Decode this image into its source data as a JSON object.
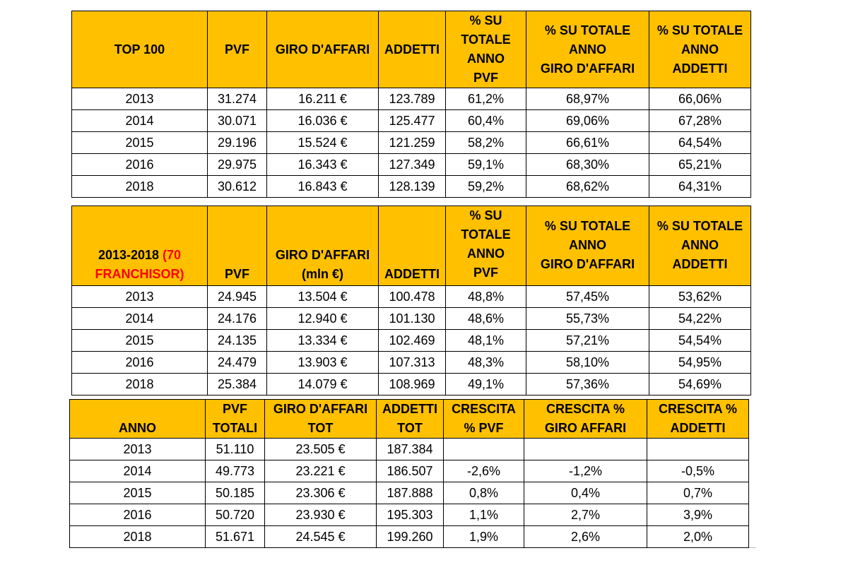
{
  "table_top100": {
    "headers": [
      "TOP 100",
      "PVF",
      "GIRO D'AFFARI",
      "ADDETTI",
      "% SU TOTALE ANNO PVF",
      "% SU TOTALE ANNO GIRO D'AFFARI",
      "% SU TOTALE ANNO ADDETTI"
    ],
    "header_lines": {
      "col4": [
        "% SU",
        "TOTALE",
        "ANNO",
        "PVF"
      ],
      "col5": [
        "% SU TOTALE",
        "ANNO",
        "GIRO D'AFFARI"
      ],
      "col6": [
        "% SU TOTALE",
        "ANNO",
        "ADDETTI"
      ]
    },
    "rows": [
      [
        "2013",
        "31.274",
        "16.211 €",
        "123.789",
        "61,2%",
        "68,97%",
        "66,06%"
      ],
      [
        "2014",
        "30.071",
        "16.036 €",
        "125.477",
        "60,4%",
        "69,06%",
        "67,28%"
      ],
      [
        "2015",
        "29.196",
        "15.524 €",
        "121.259",
        "58,2%",
        "66,61%",
        "64,54%"
      ],
      [
        "2016",
        "29.975",
        "16.343 €",
        "127.349",
        "59,1%",
        "68,30%",
        "65,21%"
      ],
      [
        "2018",
        "30.612",
        "16.843 €",
        "128.139",
        "59,2%",
        "68,62%",
        "64,31%"
      ]
    ]
  },
  "table_franchisor": {
    "header_title_main": "2013-2018",
    "header_title_highlight_1": "(70",
    "header_title_highlight_2": "FRANCHISOR)",
    "header_pvf": "PVF",
    "header_giro_lines": [
      "GIRO D'AFFARI",
      "(mln €)"
    ],
    "header_addetti": "ADDETTI",
    "header_lines": {
      "col4": [
        "% SU",
        "TOTALE",
        "ANNO",
        "PVF"
      ],
      "col5": [
        "% SU TOTALE",
        "ANNO",
        "GIRO D'AFFARI"
      ],
      "col6": [
        "% SU TOTALE",
        "ANNO",
        "ADDETTI"
      ]
    },
    "rows": [
      [
        "2013",
        "24.945",
        "13.504 €",
        "100.478",
        "48,8%",
        "57,45%",
        "53,62%"
      ],
      [
        "2014",
        "24.176",
        "12.940 €",
        "101.130",
        "48,6%",
        "55,73%",
        "54,22%"
      ],
      [
        "2015",
        "24.135",
        "13.334 €",
        "102.469",
        "48,1%",
        "57,21%",
        "54,54%"
      ],
      [
        "2016",
        "24.479",
        "13.903 €",
        "107.313",
        "48,3%",
        "58,10%",
        "54,95%"
      ],
      [
        "2018",
        "25.384",
        "14.079 €",
        "108.969",
        "49,1%",
        "57,36%",
        "54,69%"
      ]
    ]
  },
  "table_totals": {
    "header_lines": {
      "col0": [
        "ANNO"
      ],
      "col1": [
        "PVF",
        "TOTALI"
      ],
      "col2": [
        "GIRO D'AFFARI",
        "TOT"
      ],
      "col3": [
        "ADDETTI",
        "TOT"
      ],
      "col4": [
        "CRESCITA",
        "% PVF"
      ],
      "col5": [
        "CRESCITA %",
        "GIRO AFFARI"
      ],
      "col6": [
        "CRESCITA %",
        "ADDETTI"
      ]
    },
    "rows": [
      [
        "2013",
        "51.110",
        "23.505 €",
        "187.384",
        "",
        "",
        ""
      ],
      [
        "2014",
        "49.773",
        "23.221 €",
        "186.507",
        "-2,6%",
        "-1,2%",
        "-0,5%"
      ],
      [
        "2015",
        "50.185",
        "23.306 €",
        "187.888",
        "0,8%",
        "0,4%",
        "0,7%"
      ],
      [
        "2016",
        "50.720",
        "23.930 €",
        "195.303",
        "1,1%",
        "2,7%",
        "3,9%"
      ],
      [
        "2018",
        "51.671",
        "24.545 €",
        "199.260",
        "1,9%",
        "2,6%",
        "2,0%"
      ]
    ]
  }
}
